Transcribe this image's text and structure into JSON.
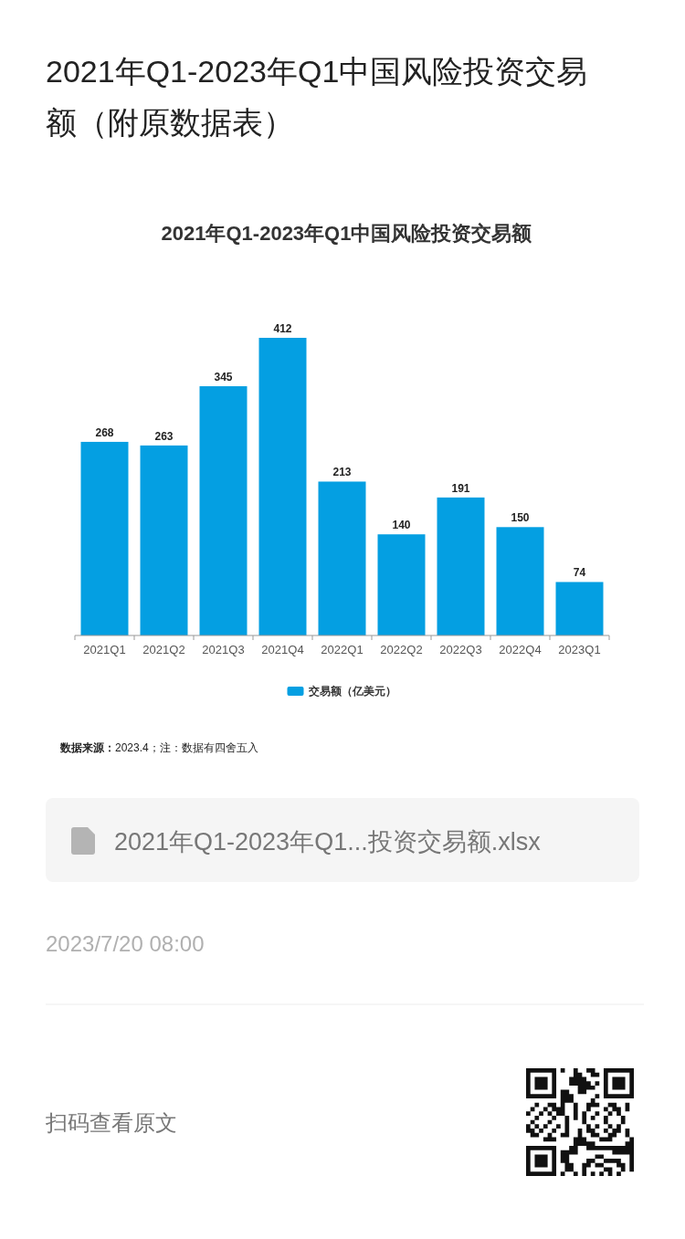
{
  "chart_data": {
    "type": "bar",
    "title": "2021年Q1-2023年Q1中国风险投资交易额（附原数据表）",
    "subtitle": "2021年Q1-2023年Q1中国风险投资交易额",
    "categories": [
      "2021Q1",
      "2021Q2",
      "2021Q3",
      "2021Q4",
      "2022Q1",
      "2022Q2",
      "2022Q3",
      "2022Q4",
      "2023Q1"
    ],
    "series": [
      {
        "name": "交易额（亿美元）",
        "color": "#049fe2",
        "values": [
          268,
          263,
          345,
          412,
          213,
          140,
          191,
          150,
          74
        ]
      }
    ],
    "data_labels": true,
    "legend": "bottom",
    "annotations": [
      "数据来源：2023.4；注：数据有四舍五入",
      "2021年Q1-2023年Q1...投资交易额.xlsx",
      "2023/7/20 08:00",
      "扫码查看原文"
    ]
  }
}
